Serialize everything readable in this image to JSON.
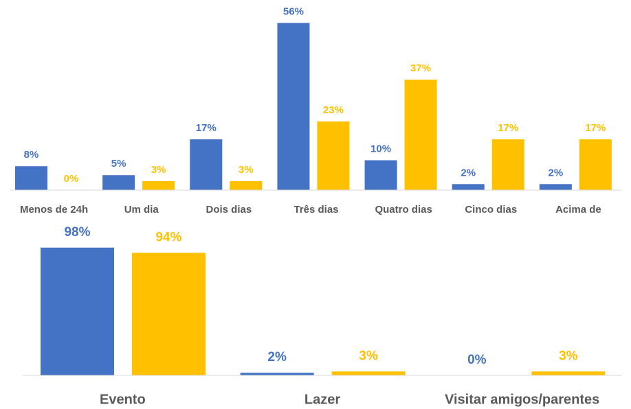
{
  "chart_data": [
    {
      "type": "bar",
      "categories": [
        "Menos de 24h",
        "Um dia",
        "Dois dias",
        "Três dias",
        "Quatro dias",
        "Cinco dias",
        "Acima de"
      ],
      "series": [
        {
          "color": "#4472c4",
          "values": [
            8,
            5,
            17,
            56,
            10,
            2,
            2
          ],
          "value_labels": [
            "8%",
            "5%",
            "17%",
            "56%",
            "10%",
            "2%",
            "2%"
          ]
        },
        {
          "color": "#ffc000",
          "values": [
            0,
            3,
            3,
            23,
            37,
            17,
            17
          ],
          "value_labels": [
            "0%",
            "3%",
            "3%",
            "23%",
            "37%",
            "17%",
            "17%"
          ]
        }
      ],
      "ylim": [
        0,
        60
      ]
    },
    {
      "type": "bar",
      "categories": [
        "Evento",
        "Lazer",
        "Visitar amigos/parentes"
      ],
      "series": [
        {
          "color": "#4472c4",
          "values": [
            98,
            2,
            0
          ],
          "value_labels": [
            "98%",
            "2%",
            "0%"
          ]
        },
        {
          "color": "#ffc000",
          "values": [
            94,
            3,
            3
          ],
          "value_labels": [
            "94%",
            "3%",
            "3%"
          ]
        }
      ],
      "ylim": [
        0,
        100
      ]
    }
  ]
}
